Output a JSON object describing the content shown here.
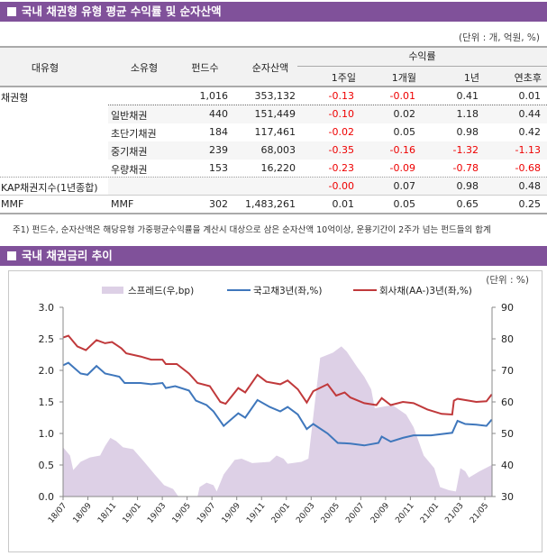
{
  "section1": {
    "title": "국내 채권형 유형 평균 수익률 및 순자산액",
    "unit": "(단위 : 개, 억원, %)",
    "headers": {
      "major": "대유형",
      "minor": "소유형",
      "funds": "펀드수",
      "assets": "순자산액",
      "returns": "수익률",
      "w1": "1주일",
      "m1": "1개월",
      "y1": "1년",
      "ytd": "연초후"
    },
    "rows": [
      {
        "major": "채권형",
        "minor": "",
        "funds": "1,016",
        "assets": "353,132",
        "w1": "-0.13",
        "m1": "-0.01",
        "y1": "0.41",
        "ytd": "0.01"
      },
      {
        "major": "",
        "minor": "일반채권",
        "funds": "440",
        "assets": "151,449",
        "w1": "-0.10",
        "m1": "0.02",
        "y1": "1.18",
        "ytd": "0.44"
      },
      {
        "major": "",
        "minor": "초단기채권",
        "funds": "184",
        "assets": "117,461",
        "w1": "-0.02",
        "m1": "0.05",
        "y1": "0.98",
        "ytd": "0.42"
      },
      {
        "major": "",
        "minor": "중기채권",
        "funds": "239",
        "assets": "68,003",
        "w1": "-0.35",
        "m1": "-0.16",
        "y1": "-1.32",
        "ytd": "-1.13"
      },
      {
        "major": "",
        "minor": "우량채권",
        "funds": "153",
        "assets": "16,220",
        "w1": "-0.23",
        "m1": "-0.09",
        "y1": "-0.78",
        "ytd": "-0.68"
      },
      {
        "major": "KAP채권지수(1년종합)",
        "minor": "",
        "funds": "",
        "assets": "",
        "w1": "-0.00",
        "m1": "0.07",
        "y1": "0.98",
        "ytd": "0.48"
      },
      {
        "major": "MMF",
        "minor": "MMF",
        "funds": "302",
        "assets": "1,483,261",
        "w1": "0.01",
        "m1": "0.05",
        "y1": "0.65",
        "ytd": "0.25"
      }
    ],
    "note": "주1) 펀드수, 순자산액은 해당유형 가중평균수익률을 계산시 대상으로 삼은 순자산액 10억이상, 운용기간이 2주가 넘는 펀드들의 합계",
    "negative_color": "#e00000"
  },
  "section2": {
    "title": "국내 채권금리 추이"
  },
  "chart_data": {
    "type": "line",
    "unit": "(단위 : %)",
    "x_ticks": [
      "18/07",
      "18/09",
      "18/11",
      "19/01",
      "19/03",
      "19/05",
      "19/07",
      "19/09",
      "19/11",
      "20/01",
      "20/03",
      "20/05",
      "20/07",
      "20/09",
      "20/11",
      "21/01",
      "21/03",
      "21/05"
    ],
    "y_left": {
      "range": [
        0,
        3.0
      ],
      "ticks": [
        "0.0",
        "0.5",
        "1.0",
        "1.5",
        "2.0",
        "2.5",
        "3.0"
      ]
    },
    "y_right": {
      "range": [
        30,
        90
      ],
      "ticks": [
        "30",
        "40",
        "50",
        "60",
        "70",
        "80",
        "90"
      ]
    },
    "grid": false,
    "legend": "top",
    "series": [
      {
        "name": "스프레드(우,bp)",
        "type": "area",
        "axis": "right",
        "color": "#ddd0e6",
        "points": [
          [
            "2018-07-01",
            45.6
          ],
          [
            "2018-07-18",
            43
          ],
          [
            "2018-07-26",
            38.4
          ],
          [
            "2018-08-13",
            41
          ],
          [
            "2018-09-05",
            42.4
          ],
          [
            "2018-09-30",
            43
          ],
          [
            "2018-10-12",
            46
          ],
          [
            "2018-10-25",
            48.6
          ],
          [
            "2018-11-08",
            47.6
          ],
          [
            "2018-11-25",
            45.6
          ],
          [
            "2018-12-20",
            45
          ],
          [
            "2019-01-16",
            41
          ],
          [
            "2019-02-11",
            37
          ],
          [
            "2019-03-06",
            33.6
          ],
          [
            "2019-03-28",
            32.4
          ],
          [
            "2019-04-10",
            30
          ],
          [
            "2019-05-27",
            30
          ],
          [
            "2019-06-01",
            33
          ],
          [
            "2019-06-18",
            34.4
          ],
          [
            "2019-07-05",
            33.6
          ],
          [
            "2019-07-13",
            31.6
          ],
          [
            "2019-07-30",
            37
          ],
          [
            "2019-08-26",
            41.6
          ],
          [
            "2019-09-12",
            42
          ],
          [
            "2019-10-08",
            40.6
          ],
          [
            "2019-11-20",
            41
          ],
          [
            "2019-12-07",
            43
          ],
          [
            "2019-12-24",
            42
          ],
          [
            "2020-01-03",
            40.4
          ],
          [
            "2020-02-06",
            41
          ],
          [
            "2020-02-23",
            42
          ],
          [
            "2020-03-10",
            60
          ],
          [
            "2020-03-23",
            74
          ],
          [
            "2020-04-23",
            75.6
          ],
          [
            "2020-05-14",
            77.6
          ],
          [
            "2020-05-27",
            76
          ],
          [
            "2020-06-22",
            71
          ],
          [
            "2020-07-09",
            68
          ],
          [
            "2020-07-26",
            64
          ],
          [
            "2020-08-04",
            58
          ],
          [
            "2020-09-16",
            59
          ],
          [
            "2020-10-20",
            56
          ],
          [
            "2020-11-07",
            52
          ],
          [
            "2020-12-02",
            43
          ],
          [
            "2020-12-28",
            39
          ],
          [
            "2021-01-11",
            33
          ],
          [
            "2021-02-02",
            32
          ],
          [
            "2021-02-19",
            31.6
          ],
          [
            "2021-03-02",
            39
          ],
          [
            "2021-03-14",
            38
          ],
          [
            "2021-03-23",
            36
          ],
          [
            "2021-04-18",
            38
          ],
          [
            "2021-05-18",
            40
          ]
        ]
      },
      {
        "name": "국고채3년(좌,%)",
        "type": "line",
        "axis": "left",
        "color": "#3f77bc",
        "points": [
          [
            "2018-07-01",
            2.08
          ],
          [
            "2018-07-14",
            2.12
          ],
          [
            "2018-08-13",
            1.95
          ],
          [
            "2018-08-30",
            1.93
          ],
          [
            "2018-09-21",
            2.07
          ],
          [
            "2018-10-12",
            1.95
          ],
          [
            "2018-11-16",
            1.9
          ],
          [
            "2018-11-29",
            1.8
          ],
          [
            "2019-01-07",
            1.8
          ],
          [
            "2019-02-02",
            1.78
          ],
          [
            "2019-03-02",
            1.8
          ],
          [
            "2019-03-10",
            1.72
          ],
          [
            "2019-04-02",
            1.75
          ],
          [
            "2019-05-06",
            1.68
          ],
          [
            "2019-05-23",
            1.52
          ],
          [
            "2019-06-18",
            1.45
          ],
          [
            "2019-07-05",
            1.35
          ],
          [
            "2019-07-30",
            1.12
          ],
          [
            "2019-09-04",
            1.32
          ],
          [
            "2019-09-21",
            1.25
          ],
          [
            "2019-10-21",
            1.53
          ],
          [
            "2019-11-20",
            1.42
          ],
          [
            "2019-12-16",
            1.35
          ],
          [
            "2020-01-03",
            1.42
          ],
          [
            "2020-01-28",
            1.3
          ],
          [
            "2020-02-19",
            1.07
          ],
          [
            "2020-03-06",
            1.15
          ],
          [
            "2020-04-10",
            1.0
          ],
          [
            "2020-05-05",
            0.85
          ],
          [
            "2020-06-05",
            0.84
          ],
          [
            "2020-07-09",
            0.81
          ],
          [
            "2020-08-13",
            0.85
          ],
          [
            "2020-08-21",
            0.95
          ],
          [
            "2020-09-12",
            0.87
          ],
          [
            "2020-10-12",
            0.93
          ],
          [
            "2020-11-07",
            0.97
          ],
          [
            "2020-12-20",
            0.97
          ],
          [
            "2021-02-10",
            1.01
          ],
          [
            "2021-02-23",
            1.2
          ],
          [
            "2021-03-14",
            1.15
          ],
          [
            "2021-04-10",
            1.14
          ],
          [
            "2021-05-05",
            1.12
          ],
          [
            "2021-05-18",
            1.22
          ]
        ]
      },
      {
        "name": "회사채(AA-)3년(좌,%)",
        "type": "line",
        "axis": "left",
        "color": "#c0393b",
        "points": [
          [
            "2018-07-01",
            2.52
          ],
          [
            "2018-07-14",
            2.55
          ],
          [
            "2018-08-05",
            2.38
          ],
          [
            "2018-08-26",
            2.32
          ],
          [
            "2018-09-21",
            2.48
          ],
          [
            "2018-10-12",
            2.43
          ],
          [
            "2018-10-29",
            2.45
          ],
          [
            "2018-11-21",
            2.35
          ],
          [
            "2018-12-03",
            2.27
          ],
          [
            "2019-01-07",
            2.22
          ],
          [
            "2019-02-02",
            2.17
          ],
          [
            "2019-03-02",
            2.17
          ],
          [
            "2019-03-10",
            2.1
          ],
          [
            "2019-04-06",
            2.1
          ],
          [
            "2019-05-06",
            1.95
          ],
          [
            "2019-05-27",
            1.8
          ],
          [
            "2019-06-26",
            1.75
          ],
          [
            "2019-07-22",
            1.5
          ],
          [
            "2019-08-04",
            1.47
          ],
          [
            "2019-09-04",
            1.72
          ],
          [
            "2019-09-21",
            1.65
          ],
          [
            "2019-10-21",
            1.93
          ],
          [
            "2019-11-12",
            1.82
          ],
          [
            "2019-12-16",
            1.78
          ],
          [
            "2020-01-03",
            1.84
          ],
          [
            "2020-01-28",
            1.7
          ],
          [
            "2020-02-19",
            1.49
          ],
          [
            "2020-03-06",
            1.67
          ],
          [
            "2020-04-10",
            1.78
          ],
          [
            "2020-05-01",
            1.6
          ],
          [
            "2020-05-22",
            1.65
          ],
          [
            "2020-06-05",
            1.57
          ],
          [
            "2020-07-09",
            1.48
          ],
          [
            "2020-08-08",
            1.45
          ],
          [
            "2020-08-21",
            1.56
          ],
          [
            "2020-09-12",
            1.45
          ],
          [
            "2020-10-12",
            1.5
          ],
          [
            "2020-11-07",
            1.48
          ],
          [
            "2020-12-11",
            1.38
          ],
          [
            "2021-01-15",
            1.31
          ],
          [
            "2021-02-10",
            1.3
          ],
          [
            "2021-02-14",
            1.52
          ],
          [
            "2021-02-23",
            1.55
          ],
          [
            "2021-03-23",
            1.52
          ],
          [
            "2021-04-10",
            1.5
          ],
          [
            "2021-05-05",
            1.51
          ],
          [
            "2021-05-18",
            1.62
          ]
        ]
      }
    ]
  }
}
